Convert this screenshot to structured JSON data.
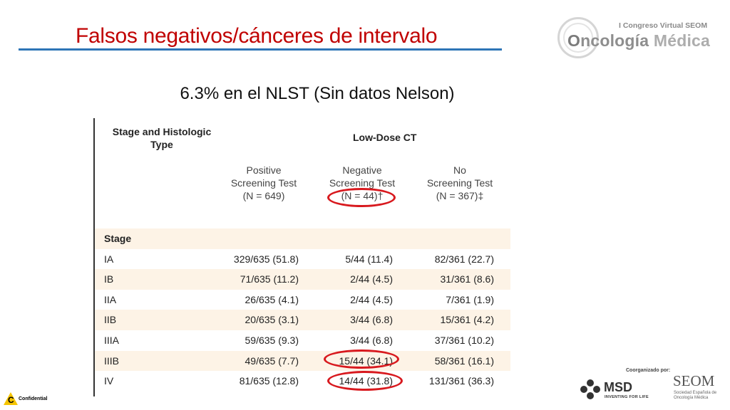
{
  "slide": {
    "title": "Falsos negativos/cánceres de intervalo",
    "subtitle": "6.3% en el NLST (Sin datos Nelson)"
  },
  "logo": {
    "congreso": "I Congreso Virtual SEOM",
    "oncologia": "ncología",
    "oncologia_initial": "O",
    "medica": "Médica"
  },
  "table": {
    "header_stage": "Stage and Histologic Type",
    "header_group": "Low-Dose CT",
    "columns": [
      {
        "line1": "Positive",
        "line2": "Screening Test",
        "line3": "(N = 649)"
      },
      {
        "line1": "Negative",
        "line2": "Screening Test",
        "line3": "(N = 44)†"
      },
      {
        "line1": "No",
        "line2": "Screening Test",
        "line3": "(N = 367)‡"
      }
    ],
    "section_label": "Stage",
    "rows": [
      {
        "stage": "IA",
        "positive": "329/635 (51.8)",
        "negative": "5/44 (11.4)",
        "none": "82/361 (22.7)"
      },
      {
        "stage": "IB",
        "positive": "71/635 (11.2)",
        "negative": "2/44 (4.5)",
        "none": "31/361 (8.6)"
      },
      {
        "stage": "IIA",
        "positive": "26/635 (4.1)",
        "negative": "2/44 (4.5)",
        "none": "7/361 (1.9)"
      },
      {
        "stage": "IIB",
        "positive": "20/635 (3.1)",
        "negative": "3/44 (6.8)",
        "none": "15/361 (4.2)"
      },
      {
        "stage": "IIIA",
        "positive": "59/635 (9.3)",
        "negative": "3/44 (6.8)",
        "none": "37/361 (10.2)"
      },
      {
        "stage": "IIIB",
        "positive": "49/635 (7.7)",
        "negative": "15/44 (34.1)",
        "none": "58/361 (16.1)"
      },
      {
        "stage": "IV",
        "positive": "81/635 (12.8)",
        "negative": "14/44 (31.8)",
        "none": "131/361 (36.3)"
      }
    ],
    "highlight_color": "#d8191e"
  },
  "footer": {
    "confidential_letter": "C",
    "confidential": "Confidential",
    "coorganizado": "Coorganizado por:",
    "msd": "MSD",
    "msd_tagline": "INVENTING FOR LIFE",
    "seom": "SEOM",
    "seom_sub": "Sociedad Española de Oncología Médica"
  },
  "colors": {
    "title": "#c00000",
    "rule": "#2e75b6",
    "row_shade": "#fdf3e6"
  }
}
